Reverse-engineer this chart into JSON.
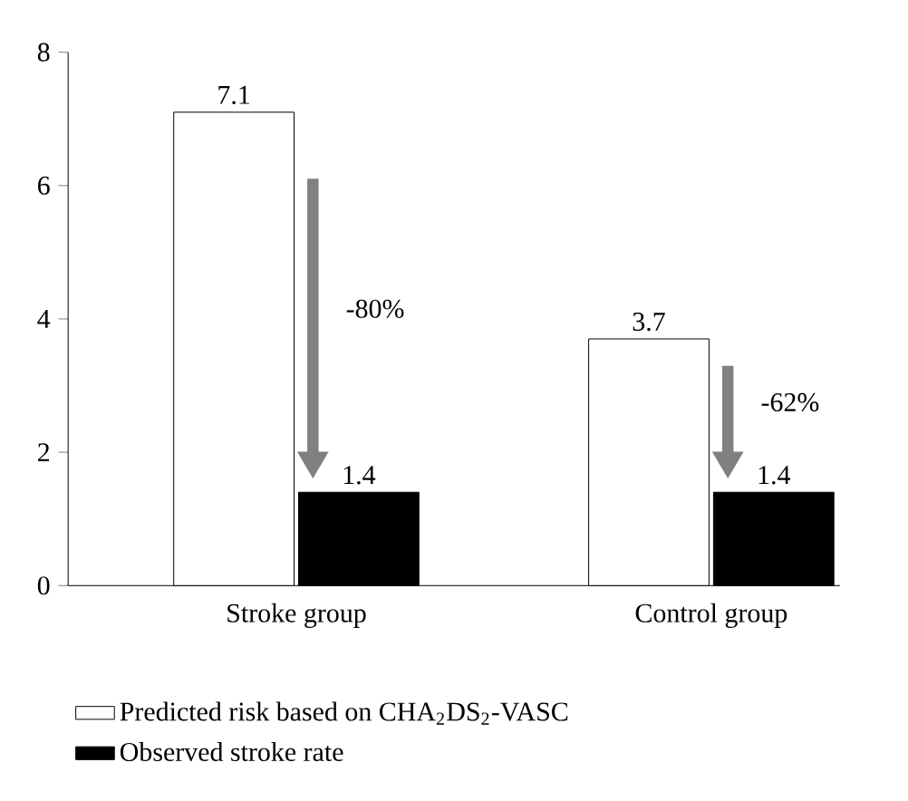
{
  "chart_data": {
    "type": "bar",
    "categories": [
      "Stroke group",
      "Control group"
    ],
    "series": [
      {
        "name": "Predicted risk based on CHA$_{2}$DS$_{2}$-VASC",
        "color": "#ffffff",
        "values": [
          7.1,
          3.7
        ]
      },
      {
        "name": "Observed stroke rate",
        "color": "#000000",
        "values": [
          1.4,
          1.4
        ]
      }
    ],
    "ylim": [
      0,
      8
    ],
    "yticks": [
      0,
      2,
      4,
      6,
      8
    ],
    "data_labels": true,
    "legend": "bottom",
    "grid": false,
    "annotations": [
      "-80%",
      "-62%"
    ]
  }
}
